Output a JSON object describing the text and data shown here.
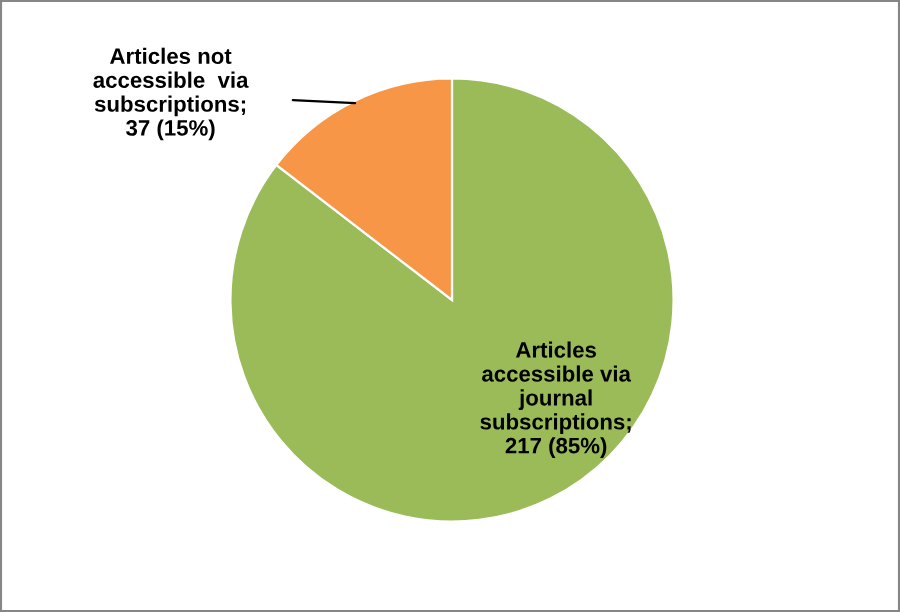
{
  "chart_data": {
    "type": "pie",
    "categories": [
      "Articles\naccessible via\njournal\nsubscriptions;\n217 (85%)",
      "Articles not\naccessible  via\nsubscriptions;\n37 (15%)"
    ],
    "values": [
      217,
      37
    ],
    "colors": [
      "#9bbb59",
      "#f79646"
    ],
    "legend": false
  }
}
